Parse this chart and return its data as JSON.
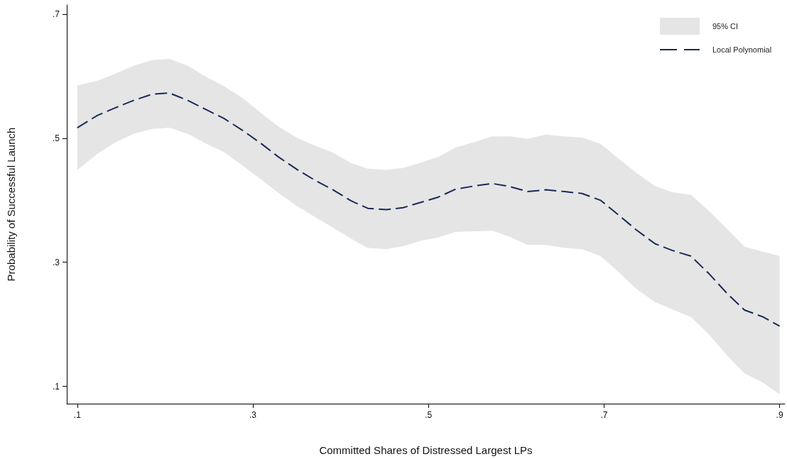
{
  "chart_data": {
    "type": "line",
    "xlabel": "Committed Shares of Distressed Largest LPs",
    "ylabel": "Probability of Successful Launch",
    "annotations": [
      "95% CI"
    ],
    "x": [
      0.1,
      0.123,
      0.143,
      0.164,
      0.185,
      0.205,
      0.226,
      0.247,
      0.267,
      0.288,
      0.309,
      0.329,
      0.35,
      0.371,
      0.391,
      0.412,
      0.431,
      0.452,
      0.471,
      0.492,
      0.511,
      0.531,
      0.552,
      0.573,
      0.593,
      0.613,
      0.634,
      0.655,
      0.675,
      0.696,
      0.716,
      0.737,
      0.758,
      0.778,
      0.799,
      0.82,
      0.84,
      0.86,
      0.881,
      0.9
    ],
    "series": [
      {
        "name": "Local Polynomial",
        "color": "#1a2a57",
        "values": [
          0.517,
          0.537,
          0.549,
          0.561,
          0.571,
          0.573,
          0.561,
          0.546,
          0.532,
          0.513,
          0.492,
          0.47,
          0.45,
          0.432,
          0.417,
          0.399,
          0.387,
          0.385,
          0.388,
          0.397,
          0.405,
          0.418,
          0.423,
          0.427,
          0.422,
          0.414,
          0.417,
          0.414,
          0.411,
          0.4,
          0.377,
          0.352,
          0.33,
          0.319,
          0.31,
          0.281,
          0.25,
          0.223,
          0.212,
          0.197
        ],
        "lower": [
          0.449,
          0.475,
          0.493,
          0.507,
          0.515,
          0.517,
          0.507,
          0.491,
          0.478,
          0.456,
          0.434,
          0.412,
          0.391,
          0.373,
          0.356,
          0.338,
          0.323,
          0.321,
          0.326,
          0.335,
          0.34,
          0.349,
          0.35,
          0.351,
          0.341,
          0.328,
          0.328,
          0.323,
          0.321,
          0.31,
          0.285,
          0.257,
          0.236,
          0.224,
          0.212,
          0.183,
          0.15,
          0.121,
          0.106,
          0.087
        ],
        "upper": [
          0.585,
          0.593,
          0.604,
          0.617,
          0.626,
          0.628,
          0.617,
          0.599,
          0.584,
          0.565,
          0.541,
          0.519,
          0.501,
          0.488,
          0.477,
          0.46,
          0.451,
          0.449,
          0.452,
          0.461,
          0.47,
          0.485,
          0.494,
          0.503,
          0.503,
          0.499,
          0.506,
          0.503,
          0.501,
          0.491,
          0.468,
          0.444,
          0.423,
          0.413,
          0.409,
          0.382,
          0.354,
          0.325,
          0.317,
          0.31
        ]
      }
    ],
    "xlim": [
      0.088,
      0.906
    ],
    "ylim": [
      0.072,
      0.715
    ],
    "xticks": [
      {
        "value": 0.1,
        "label": ".1"
      },
      {
        "value": 0.3,
        "label": ".3"
      },
      {
        "value": 0.5,
        "label": ".5"
      },
      {
        "value": 0.7,
        "label": ".7"
      },
      {
        "value": 0.9,
        "label": ".9"
      }
    ],
    "yticks": [
      {
        "value": 0.1,
        "label": ".1"
      },
      {
        "value": 0.3,
        "label": ".3"
      },
      {
        "value": 0.5,
        "label": ".5"
      },
      {
        "value": 0.7,
        "label": ".7"
      }
    ],
    "grid": false,
    "legend": "top right",
    "marker": "none",
    "line_style": "dashed"
  }
}
